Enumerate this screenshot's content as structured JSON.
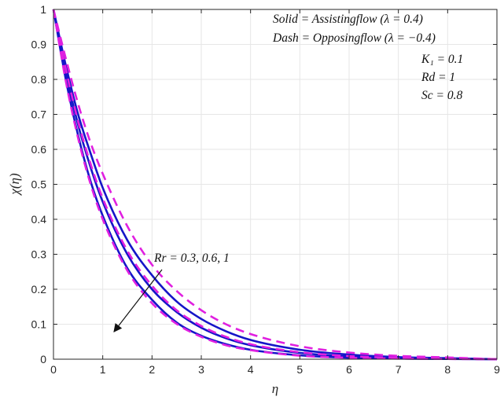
{
  "chart_data": {
    "type": "line",
    "title": "",
    "xlabel": "η",
    "ylabel": "χ(η)",
    "xlim": [
      0,
      9
    ],
    "ylim": [
      0,
      1
    ],
    "x_ticks": [
      "0",
      "1",
      "2",
      "3",
      "4",
      "5",
      "6",
      "7",
      "8",
      "9"
    ],
    "y_ticks": [
      "0",
      "0.1",
      "0.2",
      "0.3",
      "0.4",
      "0.5",
      "0.6",
      "0.7",
      "0.8",
      "0.9",
      "1"
    ],
    "grid": true,
    "colors": {
      "solid": "#1515c8",
      "dash": "#e020e0",
      "axis": "#262626",
      "grid": "#e6e6e6"
    },
    "x": [
      0,
      0.25,
      0.5,
      0.75,
      1,
      1.5,
      2,
      2.5,
      3,
      3.5,
      4,
      5,
      6,
      7,
      8,
      9
    ],
    "series": [
      {
        "style": "solid",
        "values": [
          1,
          0.8,
          0.64,
          0.51,
          0.41,
          0.26,
          0.17,
          0.105,
          0.067,
          0.043,
          0.027,
          0.011,
          0.004,
          0.0017,
          0.0007,
          0
        ]
      },
      {
        "style": "solid",
        "values": [
          1,
          0.82,
          0.67,
          0.55,
          0.45,
          0.3,
          0.2,
          0.135,
          0.09,
          0.06,
          0.04,
          0.018,
          0.008,
          0.0035,
          0.0015,
          0
        ]
      },
      {
        "style": "solid",
        "values": [
          1,
          0.84,
          0.7,
          0.59,
          0.49,
          0.34,
          0.24,
          0.165,
          0.115,
          0.08,
          0.055,
          0.027,
          0.013,
          0.006,
          0.003,
          0
        ]
      },
      {
        "style": "dash",
        "values": [
          1,
          0.795,
          0.632,
          0.502,
          0.4,
          0.253,
          0.16,
          0.101,
          0.064,
          0.04,
          0.026,
          0.01,
          0.004,
          0.0016,
          0.0006,
          0
        ]
      },
      {
        "style": "dash",
        "values": [
          1,
          0.83,
          0.68,
          0.56,
          0.46,
          0.31,
          0.21,
          0.14,
          0.095,
          0.064,
          0.043,
          0.02,
          0.009,
          0.004,
          0.002,
          0
        ]
      },
      {
        "style": "dash",
        "values": [
          1,
          0.86,
          0.73,
          0.62,
          0.53,
          0.38,
          0.27,
          0.195,
          0.14,
          0.1,
          0.072,
          0.037,
          0.019,
          0.0095,
          0.005,
          0
        ]
      }
    ],
    "annotations": {
      "legend_solid": "Solid = Assistingflow (λ = 0.4)",
      "legend_dash": "Dash = Opposingflow (λ = −0.4)",
      "param_k1": "K₁ = 0.1",
      "param_rd": "Rd = 1",
      "param_sc": "Sc = 0.8",
      "rr_label": "Rr = 0.3, 0.6, 1"
    }
  }
}
